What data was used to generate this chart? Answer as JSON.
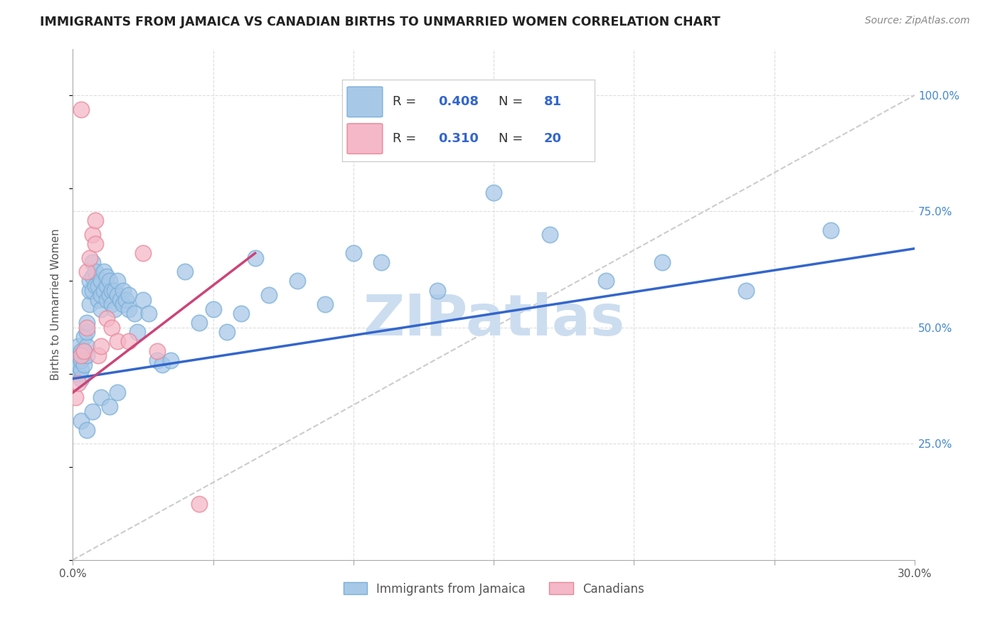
{
  "title": "IMMIGRANTS FROM JAMAICA VS CANADIAN BIRTHS TO UNMARRIED WOMEN CORRELATION CHART",
  "source": "Source: ZipAtlas.com",
  "ylabel": "Births to Unmarried Women",
  "xlabel_blue": "Immigrants from Jamaica",
  "xlabel_pink": "Canadians",
  "xlim": [
    0.0,
    0.3
  ],
  "ylim": [
    0.0,
    1.1
  ],
  "xtick_vals": [
    0.0,
    0.05,
    0.1,
    0.15,
    0.2,
    0.25,
    0.3
  ],
  "xtick_labels": [
    "0.0%",
    "",
    "",
    "",
    "",
    "",
    "30.0%"
  ],
  "yticks_right": [
    0.25,
    0.5,
    0.75,
    1.0
  ],
  "ytick_labels_right": [
    "25.0%",
    "50.0%",
    "75.0%",
    "100.0%"
  ],
  "R_blue": 0.408,
  "N_blue": 81,
  "R_pink": 0.31,
  "N_pink": 20,
  "blue_color": "#a8c8e8",
  "blue_edge_color": "#7ab0d8",
  "pink_color": "#f4b8c8",
  "pink_edge_color": "#e88898",
  "blue_line_color": "#3366cc",
  "pink_line_color": "#cc4477",
  "diag_color": "#cccccc",
  "grid_color": "#dddddd",
  "watermark_color": "#ccddf0",
  "watermark_text": "ZIPatlas",
  "blue_scatter_x": [
    0.001,
    0.001,
    0.001,
    0.002,
    0.002,
    0.002,
    0.002,
    0.003,
    0.003,
    0.003,
    0.003,
    0.004,
    0.004,
    0.004,
    0.005,
    0.005,
    0.005,
    0.005,
    0.006,
    0.006,
    0.006,
    0.007,
    0.007,
    0.007,
    0.008,
    0.008,
    0.009,
    0.009,
    0.01,
    0.01,
    0.01,
    0.011,
    0.011,
    0.012,
    0.012,
    0.012,
    0.013,
    0.013,
    0.014,
    0.014,
    0.015,
    0.015,
    0.016,
    0.016,
    0.017,
    0.018,
    0.018,
    0.019,
    0.02,
    0.02,
    0.022,
    0.023,
    0.025,
    0.027,
    0.03,
    0.032,
    0.035,
    0.04,
    0.045,
    0.05,
    0.055,
    0.06,
    0.065,
    0.07,
    0.08,
    0.09,
    0.1,
    0.11,
    0.13,
    0.15,
    0.17,
    0.19,
    0.21,
    0.24,
    0.27,
    0.003,
    0.005,
    0.007,
    0.01,
    0.013,
    0.016
  ],
  "blue_scatter_y": [
    0.42,
    0.43,
    0.44,
    0.4,
    0.42,
    0.44,
    0.46,
    0.39,
    0.41,
    0.43,
    0.45,
    0.42,
    0.45,
    0.48,
    0.44,
    0.46,
    0.49,
    0.51,
    0.55,
    0.58,
    0.6,
    0.58,
    0.61,
    0.64,
    0.59,
    0.62,
    0.56,
    0.59,
    0.54,
    0.57,
    0.6,
    0.62,
    0.58,
    0.56,
    0.59,
    0.61,
    0.57,
    0.6,
    0.58,
    0.55,
    0.58,
    0.54,
    0.57,
    0.6,
    0.56,
    0.58,
    0.55,
    0.56,
    0.54,
    0.57,
    0.53,
    0.49,
    0.56,
    0.53,
    0.43,
    0.42,
    0.43,
    0.62,
    0.51,
    0.54,
    0.49,
    0.53,
    0.65,
    0.57,
    0.6,
    0.55,
    0.66,
    0.64,
    0.58,
    0.79,
    0.7,
    0.6,
    0.64,
    0.58,
    0.71,
    0.3,
    0.28,
    0.32,
    0.35,
    0.33,
    0.36
  ],
  "pink_scatter_x": [
    0.001,
    0.002,
    0.003,
    0.003,
    0.004,
    0.005,
    0.005,
    0.006,
    0.007,
    0.008,
    0.008,
    0.009,
    0.01,
    0.012,
    0.014,
    0.016,
    0.02,
    0.025,
    0.03,
    0.045
  ],
  "pink_scatter_y": [
    0.35,
    0.38,
    0.44,
    0.97,
    0.45,
    0.5,
    0.62,
    0.65,
    0.7,
    0.68,
    0.73,
    0.44,
    0.46,
    0.52,
    0.5,
    0.47,
    0.47,
    0.66,
    0.45,
    0.12
  ],
  "blue_trend": [
    0.0,
    0.39,
    0.3,
    0.67
  ],
  "pink_trend": [
    0.0,
    0.36,
    0.065,
    0.66
  ],
  "diag_line": [
    0.0,
    0.0,
    0.3,
    1.0
  ]
}
